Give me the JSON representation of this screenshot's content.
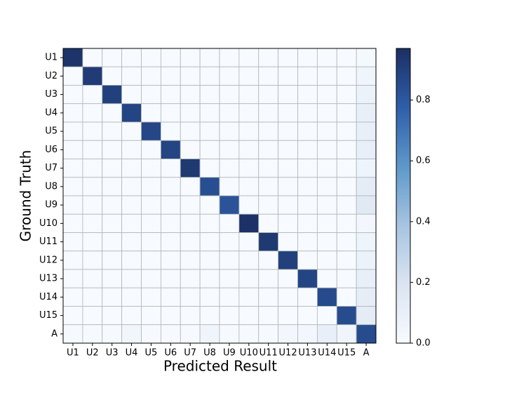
{
  "chart_data": {
    "type": "heatmap",
    "xlabel": "Predicted Result",
    "ylabel": "Ground Truth",
    "x_categories": [
      "U1",
      "U2",
      "U3",
      "U4",
      "U5",
      "U6",
      "U7",
      "U8",
      "U9",
      "U10",
      "U11",
      "U12",
      "U13",
      "U14",
      "U15",
      "A"
    ],
    "y_categories": [
      "U1",
      "U2",
      "U3",
      "U4",
      "U5",
      "U6",
      "U7",
      "U8",
      "U9",
      "U10",
      "U11",
      "U12",
      "U13",
      "U14",
      "U15",
      "A"
    ],
    "values": [
      [
        0.95,
        0,
        0,
        0,
        0,
        0,
        0,
        0,
        0,
        0,
        0,
        0,
        0,
        0,
        0,
        0.02
      ],
      [
        0,
        0.92,
        0,
        0,
        0,
        0,
        0,
        0,
        0,
        0,
        0,
        0,
        0,
        0,
        0,
        0.05
      ],
      [
        0,
        0,
        0.9,
        0,
        0,
        0,
        0,
        0,
        0,
        0,
        0,
        0,
        0,
        0,
        0,
        0.08
      ],
      [
        0,
        0,
        0,
        0.88,
        0,
        0,
        0,
        0,
        0,
        0,
        0,
        0,
        0,
        0,
        0,
        0.1
      ],
      [
        0,
        0,
        0,
        0,
        0.87,
        0,
        0,
        0,
        0,
        0,
        0,
        0,
        0,
        0,
        0,
        0.1
      ],
      [
        0,
        0,
        0,
        0,
        0,
        0.88,
        0,
        0,
        0,
        0,
        0,
        0,
        0,
        0,
        0,
        0.1
      ],
      [
        0,
        0,
        0,
        0,
        0,
        0,
        0.93,
        0,
        0,
        0,
        0,
        0,
        0,
        0,
        0,
        0.06
      ],
      [
        0,
        0,
        0,
        0,
        0,
        0,
        0,
        0.84,
        0,
        0,
        0,
        0,
        0,
        0,
        0,
        0.13
      ],
      [
        0,
        0,
        0,
        0,
        0,
        0,
        0,
        0,
        0.82,
        0,
        0,
        0,
        0,
        0,
        0,
        0.15
      ],
      [
        0,
        0,
        0,
        0,
        0,
        0,
        0,
        0,
        0,
        0.96,
        0,
        0,
        0,
        0,
        0,
        0.03
      ],
      [
        0,
        0,
        0,
        0,
        0,
        0,
        0,
        0,
        0,
        0,
        0.93,
        0,
        0,
        0,
        0,
        0.06
      ],
      [
        0,
        0,
        0,
        0,
        0,
        0,
        0,
        0,
        0,
        0,
        0,
        0.9,
        0,
        0,
        0,
        0.08
      ],
      [
        0,
        0,
        0,
        0,
        0,
        0,
        0,
        0,
        0,
        0,
        0,
        0,
        0.88,
        0,
        0,
        0.1
      ],
      [
        0,
        0,
        0,
        0,
        0,
        0,
        0,
        0,
        0,
        0,
        0,
        0,
        0,
        0.86,
        0,
        0.12
      ],
      [
        0,
        0,
        0,
        0,
        0,
        0,
        0,
        0,
        0,
        0,
        0,
        0,
        0,
        0,
        0.85,
        0.13
      ],
      [
        0.01,
        0.01,
        0.01,
        0.04,
        0.01,
        0.01,
        0.01,
        0.05,
        0.01,
        0.01,
        0.01,
        0.03,
        0.03,
        0.1,
        0.05,
        0.85
      ]
    ],
    "zlim": [
      0,
      0.97
    ],
    "zticks": [
      {
        "value": 0,
        "label": "0.0"
      },
      {
        "value": 0.2,
        "label": "0.2"
      },
      {
        "value": 0.4,
        "label": "0.4"
      },
      {
        "value": 0.6,
        "label": "0.6"
      },
      {
        "value": 0.8,
        "label": "0.8"
      }
    ],
    "colorscale": [
      "#f7fbff",
      "#dbe4f1",
      "#a7c4e1",
      "#5d98c9",
      "#2f5ea9",
      "#1b2f63"
    ],
    "grid_color": "#b0b4ba"
  }
}
